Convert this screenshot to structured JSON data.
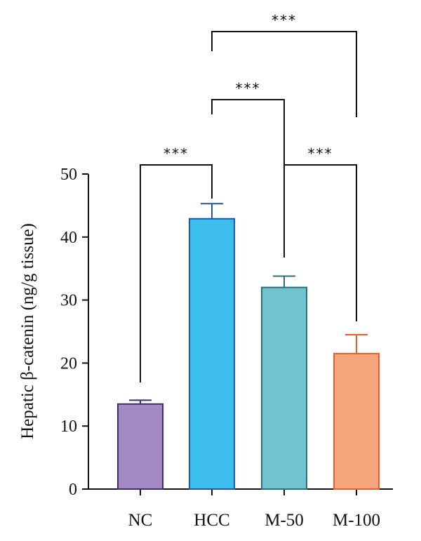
{
  "chart_data": {
    "type": "bar",
    "title": "",
    "xlabel": "",
    "ylabel": "Hepatic β-catenin (ng/g tissue)",
    "ylim": [
      0,
      50
    ],
    "yticks": [
      "0",
      "10",
      "20",
      "30",
      "40",
      "50"
    ],
    "grid": false,
    "categories": [
      "NC",
      "HCC",
      "M-50",
      "M-100"
    ],
    "values": [
      13.5,
      42.9,
      32.0,
      21.5
    ],
    "errors": [
      0.6,
      2.4,
      1.8,
      3.0
    ],
    "colors": {
      "fill": [
        "#a389c1",
        "#3dbdee",
        "#70c3cf",
        "#f5a57c"
      ],
      "edge": [
        "#3a2f6e",
        "#1f58a7",
        "#2b6e7c",
        "#f05a28"
      ]
    },
    "significance": [
      {
        "from": "NC",
        "to": "HCC",
        "label": "***"
      },
      {
        "from": "HCC",
        "to": "M-50",
        "label": "***"
      },
      {
        "from": "HCC",
        "to": "M-100",
        "label": "***"
      },
      {
        "from": "M-50",
        "to": "M-100",
        "label": "***"
      }
    ]
  }
}
